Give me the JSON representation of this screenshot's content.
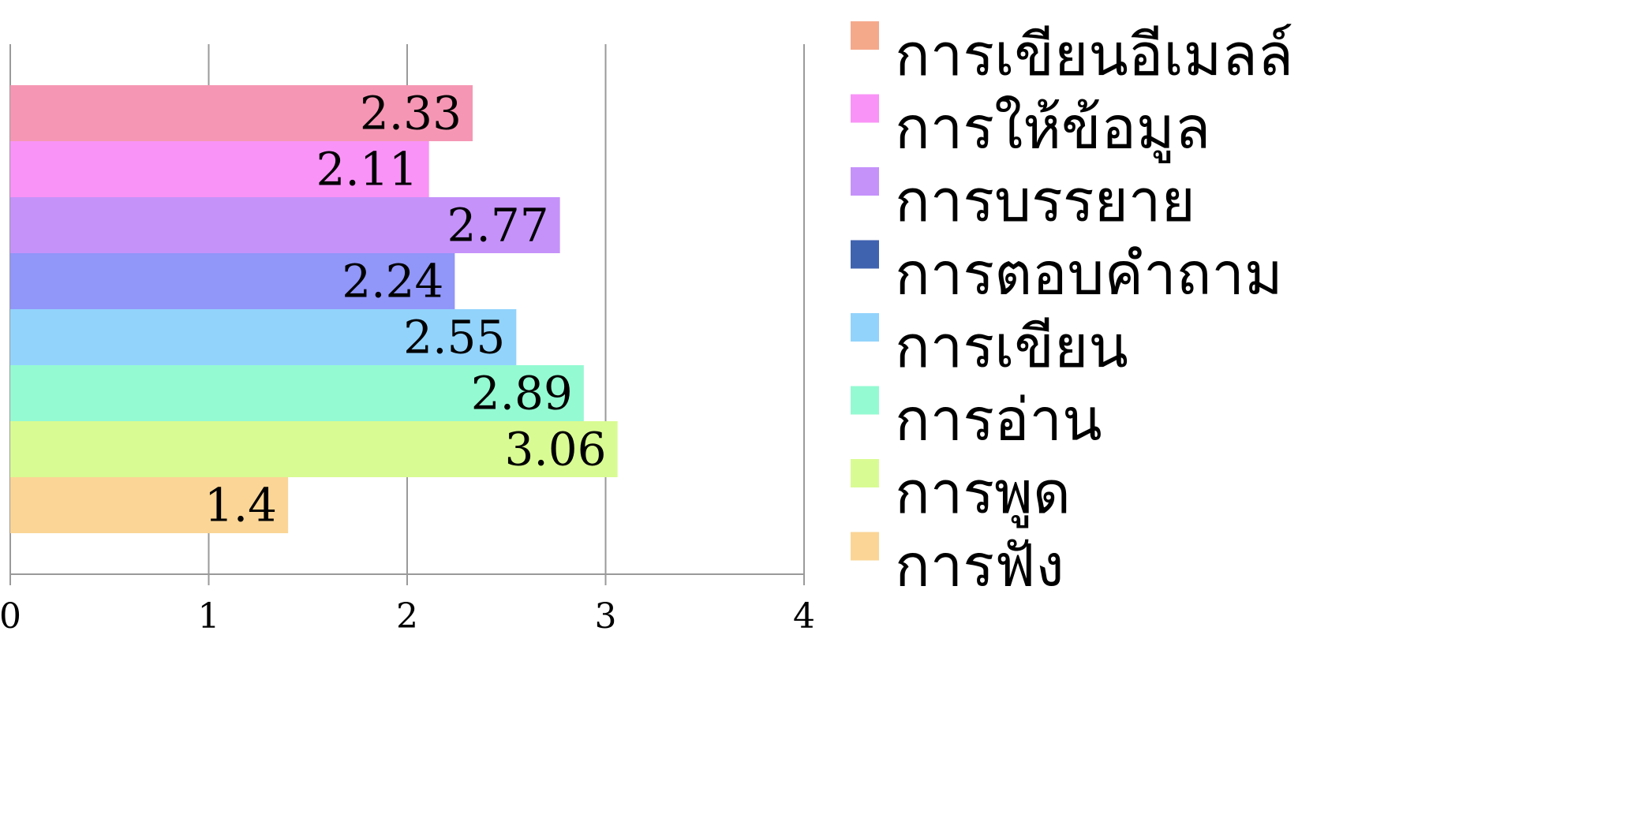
{
  "chart_data": {
    "type": "bar",
    "orientation": "horizontal",
    "categories": [
      "การเขียนอีเมลล์",
      "การให้ข้อมูล",
      "การบรรยาย",
      "การตอบคำถาม",
      "การเขียน",
      "การอ่าน",
      "การพูด",
      "การฟัง"
    ],
    "values": [
      2.33,
      2.11,
      2.77,
      2.24,
      2.55,
      2.89,
      3.06,
      1.4
    ],
    "bar_colors": [
      "#F597B4",
      "#F993F7",
      "#C592FA",
      "#9196F9",
      "#92D3FC",
      "#94FAD2",
      "#D9FB93",
      "#FAD596"
    ],
    "legend": [
      {
        "label": "การเขียนอีเมลล์",
        "color": "#F4A98B"
      },
      {
        "label": "การให้ข้อมูล",
        "color": "#F993F7"
      },
      {
        "label": "การบรรยาย",
        "color": "#C592FA"
      },
      {
        "label": "การตอบคำถาม",
        "color": "#4063AF"
      },
      {
        "label": "การเขียน",
        "color": "#92D3FC"
      },
      {
        "label": "การอ่าน",
        "color": "#94FAD2"
      },
      {
        "label": "การพูด",
        "color": "#D9FB93"
      },
      {
        "label": "การฟัง",
        "color": "#FAD596"
      }
    ],
    "xlim": [
      0,
      4
    ],
    "x_ticks": [
      "0",
      "1",
      "2",
      "3",
      "4"
    ],
    "grid": "vertical",
    "legend_position": "right",
    "title": "",
    "xlabel": "",
    "ylabel": ""
  }
}
